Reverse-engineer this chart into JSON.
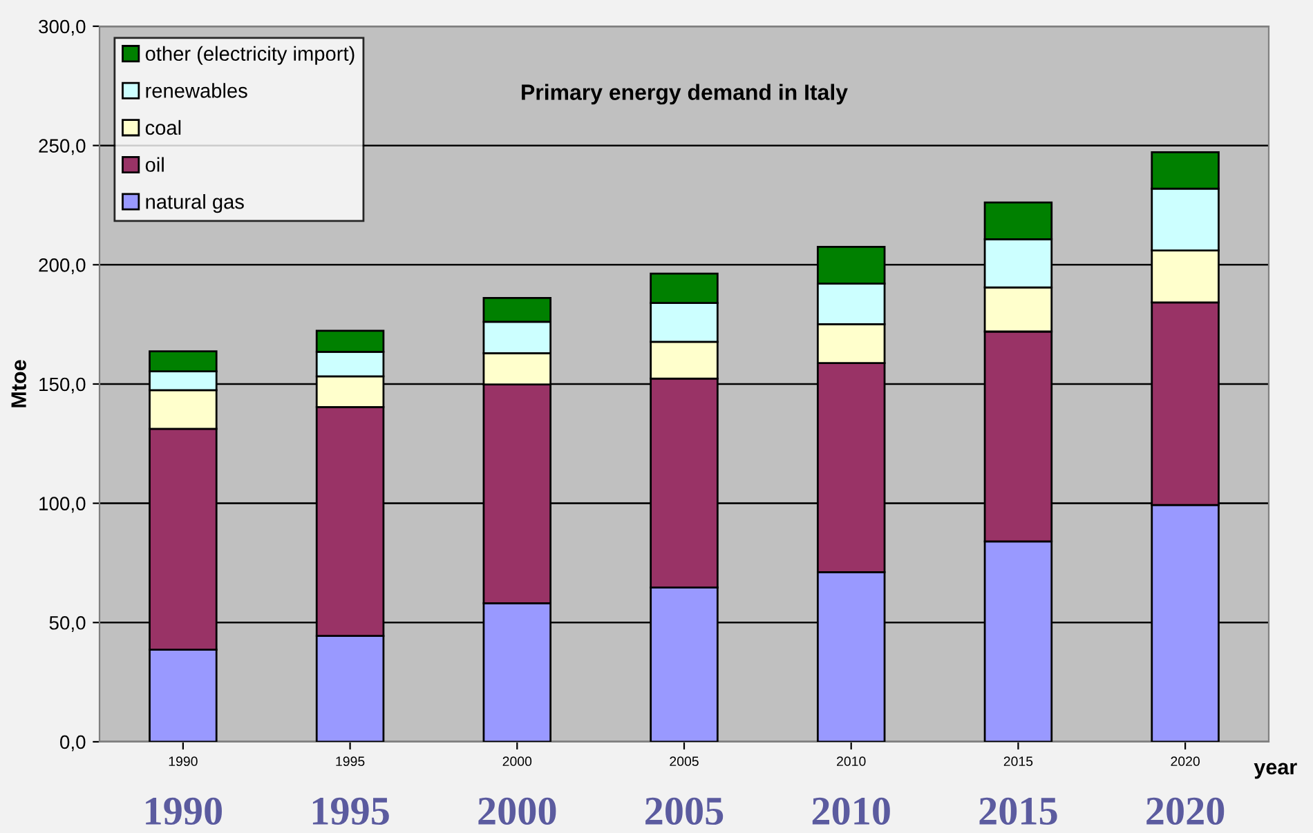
{
  "chart_data": {
    "type": "bar",
    "stacked": true,
    "title": "Primary energy demand in Italy",
    "ylabel": "Mtoe",
    "xlabel": "year",
    "categories": [
      "1990",
      "1995",
      "2000",
      "2005",
      "2010",
      "2015",
      "2020"
    ],
    "series": [
      {
        "name": "natural gas",
        "color": "#9999ff",
        "values": [
          38.6,
          44.4,
          58.1,
          64.7,
          71.1,
          84.0,
          99.3
        ]
      },
      {
        "name": "oil",
        "color": "#993366",
        "values": [
          92.6,
          95.9,
          91.7,
          87.6,
          87.7,
          88.0,
          84.9
        ]
      },
      {
        "name": "coal",
        "color": "#ffffcc",
        "values": [
          16.2,
          12.9,
          13.1,
          15.4,
          16.3,
          18.5,
          21.8
        ]
      },
      {
        "name": "renewables",
        "color": "#ccffff",
        "values": [
          7.9,
          10.3,
          13.2,
          16.3,
          17.0,
          20.2,
          25.9
        ]
      },
      {
        "name": "other (electricity import)",
        "color": "#008000",
        "values": [
          8.4,
          8.8,
          10.0,
          12.3,
          15.4,
          15.4,
          15.3
        ]
      }
    ],
    "ylim": [
      0,
      300
    ],
    "yticks": [
      {
        "value": 0,
        "label": "0,0"
      },
      {
        "value": 50,
        "label": "50,0"
      },
      {
        "value": 100,
        "label": "100,0"
      },
      {
        "value": 150,
        "label": "150,0"
      },
      {
        "value": 200,
        "label": "200,0"
      },
      {
        "value": 250,
        "label": "250,0"
      },
      {
        "value": 300,
        "label": "300,0"
      }
    ],
    "grid": "y",
    "legend": "top left",
    "annotations": [
      "1990",
      "1995",
      "2000",
      "2005",
      "2010",
      "2015",
      "2020"
    ]
  }
}
